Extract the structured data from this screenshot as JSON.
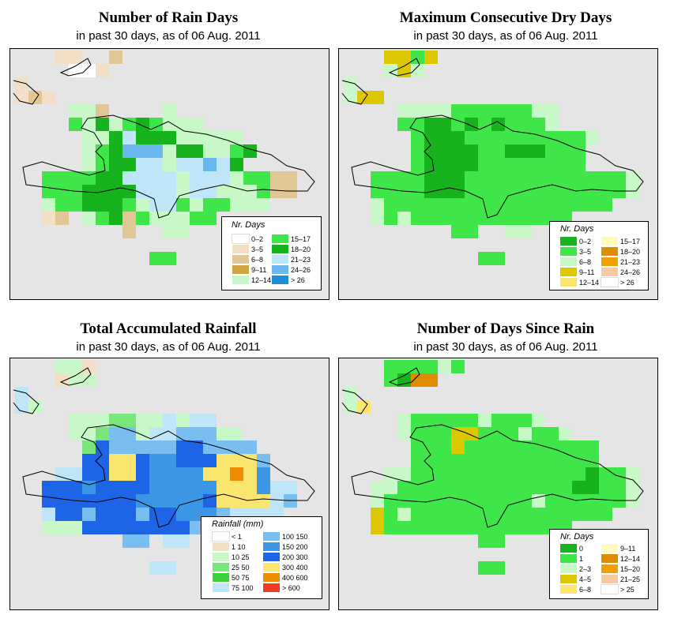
{
  "panels": [
    {
      "id": "rain-days",
      "title": "Number of Rain Days",
      "subtitle": "in past 30 days, as of  06 Aug. 2011",
      "legend": {
        "title": "Nr. Days",
        "items": [
          {
            "label": "0–2",
            "color": "#ffffff"
          },
          {
            "label": "3–5",
            "color": "#f3dfc6"
          },
          {
            "label": "6–8",
            "color": "#e2c796"
          },
          {
            "label": "9–11",
            "color": "#cea540"
          },
          {
            "label": "12–14",
            "color": "#c8f8c8"
          },
          {
            "label": "15–17",
            "color": "#3fe64a"
          },
          {
            "label": "18–20",
            "color": "#17b31e"
          },
          {
            "label": "21–23",
            "color": "#bfe6f8"
          },
          {
            "label": "24–26",
            "color": "#6ab6ee"
          },
          {
            "label": "> 26",
            "color": "#1c8fd6"
          }
        ]
      }
    },
    {
      "id": "dry-days",
      "title": "Maximum Consecutive Dry Days",
      "subtitle": "in past 30 days, as of  06 Aug. 2011",
      "legend": {
        "title": "Nr. Days",
        "items": [
          {
            "label": "0–2",
            "color": "#17b31e"
          },
          {
            "label": "3–5",
            "color": "#3fe64a"
          },
          {
            "label": "6–8",
            "color": "#c8f8c8"
          },
          {
            "label": "9–11",
            "color": "#dcc800"
          },
          {
            "label": "12–14",
            "color": "#fae66e"
          },
          {
            "label": "15–17",
            "color": "#fffabe"
          },
          {
            "label": "18–20",
            "color": "#e08c00"
          },
          {
            "label": "21–23",
            "color": "#f0a000"
          },
          {
            "label": "24–26",
            "color": "#f8c8a0"
          },
          {
            "label": "> 26",
            "color": "#ffffff"
          }
        ]
      }
    },
    {
      "id": "rainfall",
      "title": "Total Accumulated Rainfall",
      "subtitle": "in past 30 days, as of  06 Aug. 2011",
      "legend": {
        "title": "Rainfall (mm)",
        "items": [
          {
            "label": "< 1",
            "color": "#ffffff"
          },
          {
            "label": "1   10",
            "color": "#f3dfc6"
          },
          {
            "label": "10   25",
            "color": "#c8f8c8"
          },
          {
            "label": "25   50",
            "color": "#78e678"
          },
          {
            "label": "50   75",
            "color": "#3cd23c"
          },
          {
            "label": "75   100",
            "color": "#bfe6f8"
          },
          {
            "label": "100   150",
            "color": "#78bef0"
          },
          {
            "label": "150   200",
            "color": "#3c96e6"
          },
          {
            "label": "200   300",
            "color": "#1e64e6"
          },
          {
            "label": "300   400",
            "color": "#fae66e"
          },
          {
            "label": "400   600",
            "color": "#f08c00"
          },
          {
            "label": "> 600",
            "color": "#f03c1e"
          }
        ]
      }
    },
    {
      "id": "since-rain",
      "title": "Number of Days Since Rain",
      "subtitle": "in past 30 days, as of  06 Aug. 2011",
      "legend": {
        "title": "Nr. Days",
        "items": [
          {
            "label": "0",
            "color": "#17b31e"
          },
          {
            "label": "1",
            "color": "#3fe64a"
          },
          {
            "label": "2–3",
            "color": "#c8f8c8"
          },
          {
            "label": "4–5",
            "color": "#dcc800"
          },
          {
            "label": "6–8",
            "color": "#fae66e"
          },
          {
            "label": "9–11",
            "color": "#fffabe"
          },
          {
            "label": "12–14",
            "color": "#e08c00"
          },
          {
            "label": "15–20",
            "color": "#f0a000"
          },
          {
            "label": "21–25",
            "color": "#f8c8a0"
          },
          {
            "label": "> 25",
            "color": "#ffffff"
          }
        ]
      }
    }
  ]
}
